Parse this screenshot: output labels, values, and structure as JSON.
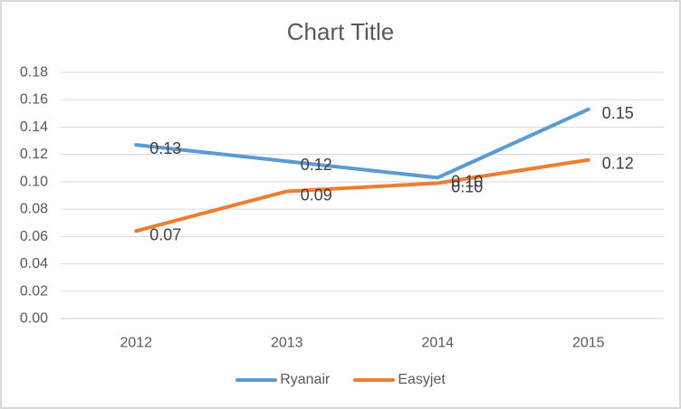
{
  "window": {
    "background_color": "#ffffff",
    "border_color": "#d9d9d9"
  },
  "chart_data": {
    "type": "line",
    "title": "Chart Title",
    "categories": [
      "2012",
      "2013",
      "2014",
      "2015"
    ],
    "series": [
      {
        "name": "Ryanair",
        "color": "#5b9bd5",
        "values": [
          0.13,
          0.12,
          0.1,
          0.15
        ],
        "labels": [
          "0.13",
          "0.12",
          "0.10",
          "0.15"
        ],
        "precise_values": [
          0.127,
          0.115,
          0.103,
          0.153
        ]
      },
      {
        "name": "Easyjet",
        "color": "#ed7d31",
        "values": [
          0.07,
          0.09,
          0.1,
          0.12
        ],
        "labels": [
          "0.07",
          "0.09",
          "0.10",
          "0.12"
        ],
        "precise_values": [
          0.064,
          0.093,
          0.099,
          0.116
        ]
      }
    ],
    "y_axis": {
      "min": 0.0,
      "max": 0.18,
      "step": 0.02,
      "tick_labels_top_to_bottom": [
        "0.18",
        "0.16",
        "0.14",
        "0.12",
        "0.10",
        "0.08",
        "0.06",
        "0.04",
        "0.02",
        "0.00"
      ]
    },
    "x_axis": {
      "tick_labels": [
        "2012",
        "2013",
        "2014",
        "2015"
      ]
    },
    "grid": true,
    "legend_position": "bottom",
    "colors": {
      "axis_text": "#595959",
      "title_text": "#595959",
      "data_label_text": "#404040",
      "gridline": "#d9d9d9",
      "axis_line": "#cdcdcd"
    },
    "font_sizes_px": {
      "title": 26,
      "axis_tick": 16,
      "data_label": 18,
      "legend": 16
    }
  }
}
